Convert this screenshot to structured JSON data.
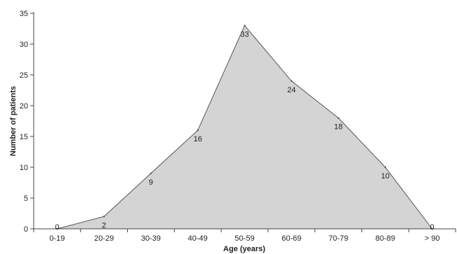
{
  "chart_data": {
    "type": "area",
    "categories": [
      "0-19",
      "20-29",
      "30-39",
      "40-49",
      "50-59",
      "60-69",
      "70-79",
      "80-89",
      "> 90"
    ],
    "values": [
      0,
      2,
      9,
      16,
      33,
      24,
      18,
      10,
      0
    ],
    "data_labels": [
      "0",
      "2",
      "9",
      "16",
      "33",
      "24",
      "18",
      "10",
      "0"
    ],
    "xlabel": "Age (years)",
    "ylabel": "Number of patients",
    "ylim": [
      0,
      35
    ],
    "yticks": [
      "0",
      "5",
      "10",
      "15",
      "20",
      "25",
      "30",
      "35"
    ],
    "grid": false,
    "fill_color": "#d4d4d4",
    "line_color": "#555555",
    "axis_color": "#444444"
  }
}
